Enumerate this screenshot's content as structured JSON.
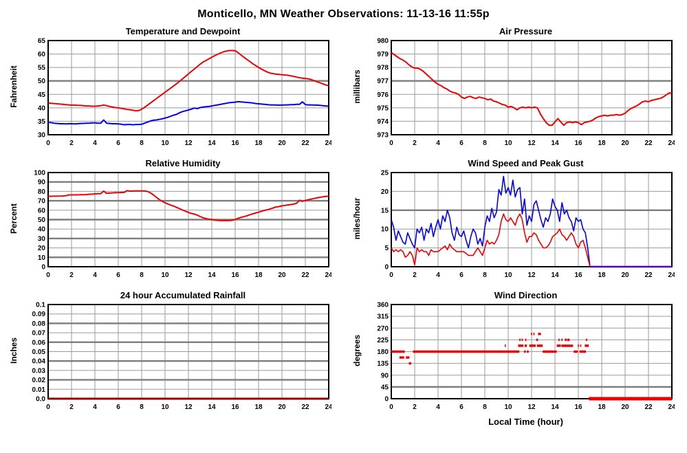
{
  "title": "Monticello, MN Weather Observations: 11-13-16 11:55p",
  "colors": {
    "red": "#ee0000",
    "blue": "#0000ee",
    "dark_red": "#990000",
    "purple": "#5000c0",
    "grid": "#9a9a9a",
    "grid_emphasis": "#7d7d7d",
    "axis": "#000000"
  },
  "chart_data": [
    {
      "id": "temperature-dewpoint",
      "type": "line",
      "title": "Temperature and Dewpoint",
      "ylabel": "Fahrenheit",
      "xlabel": "",
      "x_range": [
        0,
        24
      ],
      "x_ticks": [
        0,
        2,
        4,
        6,
        8,
        10,
        12,
        14,
        16,
        18,
        20,
        22,
        24
      ],
      "y_range": [
        30,
        65
      ],
      "y_ticks": [
        30,
        35,
        40,
        45,
        50,
        55,
        60,
        65
      ],
      "y_tick_labels": [
        "30",
        "35",
        "40",
        "45",
        "50",
        "55",
        "60",
        "65"
      ],
      "y_emphasized": [
        50
      ],
      "series": [
        {
          "name": "temperature",
          "color": "#ee0000",
          "width": 2,
          "x_start": 0,
          "x_step": 0.25,
          "y": [
            41.8,
            41.7,
            41.6,
            41.5,
            41.4,
            41.3,
            41.2,
            41.1,
            41.0,
            41.0,
            40.9,
            40.9,
            40.8,
            40.7,
            40.7,
            40.6,
            40.6,
            40.7,
            40.8,
            41.0,
            40.8,
            40.5,
            40.3,
            40.1,
            40.0,
            39.8,
            39.6,
            39.4,
            39.3,
            39.1,
            38.9,
            39.0,
            39.5,
            40.2,
            41.0,
            41.8,
            42.6,
            43.4,
            44.2,
            45.0,
            45.8,
            46.6,
            47.4,
            48.2,
            49.0,
            49.9,
            50.8,
            51.7,
            52.6,
            53.5,
            54.4,
            55.3,
            56.2,
            57.0,
            57.6,
            58.2,
            58.8,
            59.4,
            59.9,
            60.4,
            60.8,
            61.1,
            61.3,
            61.3,
            61.2,
            60.5,
            59.6,
            58.8,
            58.0,
            57.2,
            56.4,
            55.7,
            55.0,
            54.4,
            53.8,
            53.3,
            52.9,
            52.7,
            52.5,
            52.4,
            52.3,
            52.2,
            52.1,
            51.9,
            51.7,
            51.4,
            51.2,
            51.0,
            50.9,
            50.8,
            50.5,
            50.1,
            49.7,
            49.3,
            48.9,
            48.5,
            48.2
          ]
        },
        {
          "name": "dewpoint",
          "color": "#0000ee",
          "width": 2,
          "x_start": 0,
          "x_step": 0.25,
          "y": [
            34.6,
            34.5,
            34.3,
            34.2,
            34.1,
            34.1,
            34.0,
            34.1,
            34.1,
            34.0,
            34.1,
            34.2,
            34.2,
            34.3,
            34.3,
            34.4,
            34.4,
            34.3,
            34.3,
            35.5,
            34.3,
            34.2,
            34.1,
            34.1,
            34.0,
            33.9,
            33.7,
            33.8,
            33.8,
            33.7,
            33.8,
            33.8,
            33.9,
            34.3,
            34.7,
            35.1,
            35.4,
            35.5,
            35.7,
            35.9,
            36.2,
            36.5,
            36.9,
            37.3,
            37.6,
            38.2,
            38.6,
            38.9,
            39.2,
            39.5,
            39.9,
            39.7,
            40.1,
            40.3,
            40.4,
            40.5,
            40.7,
            40.9,
            41.1,
            41.3,
            41.5,
            41.7,
            41.9,
            42.0,
            42.1,
            42.3,
            42.2,
            42.1,
            42.0,
            41.9,
            41.8,
            41.6,
            41.5,
            41.4,
            41.3,
            41.2,
            41.1,
            41.1,
            41.0,
            41.0,
            41.0,
            41.1,
            41.1,
            41.2,
            41.2,
            41.3,
            41.3,
            42.2,
            41.2,
            41.1,
            41.1,
            41.0,
            41.0,
            40.9,
            40.8,
            40.7,
            40.6
          ]
        }
      ]
    },
    {
      "id": "air-pressure",
      "type": "line",
      "title": "Air Pressure",
      "ylabel": "millibars",
      "xlabel": "",
      "x_range": [
        0,
        24
      ],
      "x_ticks": [
        0,
        2,
        4,
        6,
        8,
        10,
        12,
        14,
        16,
        18,
        20,
        22,
        24
      ],
      "y_range": [
        973,
        980
      ],
      "y_ticks": [
        973,
        974,
        975,
        976,
        977,
        978,
        979,
        980
      ],
      "y_tick_labels": [
        "973",
        "974",
        "975",
        "976",
        "977",
        "978",
        "979",
        "980"
      ],
      "y_emphasized": [
        977
      ],
      "series": [
        {
          "name": "pressure",
          "color": "#ee0000",
          "width": 2,
          "x_start": 0,
          "x_step": 0.25,
          "y": [
            979.1,
            978.95,
            978.8,
            978.65,
            978.55,
            978.4,
            978.2,
            978.05,
            977.95,
            977.95,
            977.85,
            977.7,
            977.5,
            977.3,
            977.1,
            976.9,
            976.75,
            976.65,
            976.5,
            976.4,
            976.25,
            976.15,
            976.1,
            976.0,
            975.8,
            975.7,
            975.8,
            975.85,
            975.75,
            975.7,
            975.8,
            975.75,
            975.7,
            975.6,
            975.65,
            975.5,
            975.45,
            975.35,
            975.25,
            975.2,
            975.05,
            975.1,
            975.0,
            974.85,
            975.0,
            975.05,
            975.0,
            975.05,
            975.0,
            975.05,
            975.0,
            974.55,
            974.2,
            973.9,
            973.7,
            973.7,
            973.95,
            974.2,
            973.95,
            973.7,
            973.9,
            973.95,
            973.9,
            973.95,
            973.9,
            973.75,
            973.9,
            973.95,
            974.0,
            974.1,
            974.25,
            974.35,
            974.4,
            974.45,
            974.4,
            974.45,
            974.45,
            974.5,
            974.45,
            974.5,
            974.6,
            974.8,
            974.95,
            975.05,
            975.15,
            975.3,
            975.45,
            975.5,
            975.45,
            975.55,
            975.6,
            975.65,
            975.7,
            975.8,
            975.95,
            976.1,
            976.1
          ]
        }
      ]
    },
    {
      "id": "relative-humidity",
      "type": "line",
      "title": "Relative Humidity",
      "ylabel": "Percent",
      "xlabel": "",
      "x_range": [
        0,
        24
      ],
      "x_ticks": [
        0,
        2,
        4,
        6,
        8,
        10,
        12,
        14,
        16,
        18,
        20,
        22,
        24
      ],
      "y_range": [
        0,
        100
      ],
      "y_ticks": [
        0,
        10,
        20,
        30,
        40,
        50,
        60,
        70,
        80,
        90,
        100
      ],
      "y_tick_labels": [
        "0",
        "10",
        "20",
        "30",
        "40",
        "50",
        "60",
        "70",
        "80",
        "90",
        "100"
      ],
      "y_emphasized": [
        10,
        30,
        50,
        70,
        90
      ],
      "series": [
        {
          "name": "humidity",
          "color": "#ee0000",
          "width": 2,
          "x_start": 0,
          "x_step": 0.25,
          "y": [
            74.8,
            74.8,
            74.9,
            74.9,
            75.0,
            75.1,
            75.3,
            76.2,
            76.3,
            76.3,
            76.3,
            76.4,
            76.4,
            76.6,
            76.9,
            77.1,
            77.3,
            77.5,
            77.6,
            80.3,
            77.9,
            78.2,
            78.4,
            78.6,
            78.7,
            78.8,
            78.9,
            80.8,
            80.2,
            80.4,
            80.5,
            80.5,
            80.5,
            80.4,
            79.9,
            78.4,
            76.3,
            73.8,
            71.4,
            69.5,
            67.9,
            66.6,
            65.4,
            64.3,
            62.9,
            61.6,
            60.2,
            58.9,
            57.6,
            56.6,
            55.9,
            54.8,
            53.3,
            52.0,
            51.1,
            50.5,
            50.0,
            49.5,
            49.2,
            49.0,
            49.0,
            49.0,
            49.0,
            49.3,
            50.2,
            51.4,
            52.4,
            53.2,
            54.1,
            55.2,
            56.1,
            57.0,
            57.9,
            58.9,
            59.8,
            60.5,
            61.4,
            62.4,
            63.4,
            63.9,
            64.6,
            65.1,
            65.6,
            66.0,
            66.5,
            67.4,
            70.6,
            69.4,
            70.4,
            71.1,
            71.8,
            72.5,
            73.1,
            73.7,
            74.2,
            74.6,
            74.9
          ]
        }
      ]
    },
    {
      "id": "wind-speed-gust",
      "type": "line",
      "title": "Wind Speed and Peak Gust",
      "ylabel": "miles/hour",
      "xlabel": "",
      "x_range": [
        0,
        24
      ],
      "x_ticks": [
        0,
        2,
        4,
        6,
        8,
        10,
        12,
        14,
        16,
        18,
        20,
        22,
        24
      ],
      "y_range": [
        0,
        25
      ],
      "y_ticks": [
        0,
        5,
        10,
        15,
        20,
        25
      ],
      "y_tick_labels": [
        "0",
        "5",
        "10",
        "15",
        "20",
        "25"
      ],
      "y_emphasized": [
        15
      ],
      "series": [
        {
          "name": "peak-gust",
          "color": "#0000ee",
          "width": 1.6,
          "x_start": 0,
          "x_step": 0.2,
          "y": [
            12.5,
            10.5,
            7.0,
            9.5,
            8.0,
            6.5,
            6.0,
            9.0,
            7.5,
            6.0,
            5.0,
            10.0,
            9.0,
            10.5,
            7.0,
            10.0,
            9.0,
            11.5,
            8.0,
            10.5,
            12.5,
            10.0,
            13.5,
            12.0,
            15.0,
            13.0,
            9.0,
            7.0,
            10.5,
            8.5,
            8.0,
            9.5,
            7.0,
            5.0,
            8.0,
            10.0,
            9.0,
            6.0,
            7.5,
            5.5,
            10.5,
            13.5,
            12.0,
            15.5,
            13.0,
            14.5,
            20.5,
            19.0,
            24.0,
            19.5,
            21.0,
            19.0,
            23.0,
            18.5,
            20.5,
            21.0,
            14.0,
            18.0,
            11.0,
            13.5,
            12.0,
            16.5,
            17.5,
            15.0,
            12.5,
            10.5,
            13.0,
            12.0,
            14.0,
            18.0,
            16.0,
            15.0,
            12.0,
            17.0,
            14.0,
            15.0,
            13.0,
            12.0,
            9.5,
            13.0,
            12.0,
            12.5,
            10.0,
            9.0,
            5.0,
            0.0
          ]
        },
        {
          "name": "wind-speed",
          "color": "#ee0000",
          "width": 1.6,
          "x_start": 0,
          "x_step": 0.2,
          "y": [
            5.0,
            4.0,
            4.5,
            4.0,
            4.5,
            4.0,
            2.5,
            3.0,
            4.0,
            3.0,
            0.5,
            5.0,
            4.0,
            4.5,
            4.0,
            4.0,
            3.0,
            4.5,
            4.0,
            4.0,
            4.0,
            4.5,
            5.0,
            5.5,
            4.5,
            6.0,
            5.0,
            4.5,
            4.0,
            4.0,
            4.0,
            4.0,
            3.5,
            3.0,
            3.0,
            3.0,
            4.0,
            5.0,
            4.0,
            3.0,
            5.0,
            7.0,
            6.0,
            6.5,
            6.0,
            7.0,
            8.5,
            12.0,
            14.0,
            12.5,
            12.0,
            13.0,
            12.0,
            11.0,
            13.0,
            14.0,
            12.5,
            9.0,
            6.5,
            8.0,
            8.0,
            9.0,
            8.5,
            7.0,
            6.0,
            5.0,
            5.0,
            5.5,
            6.5,
            8.0,
            8.5,
            9.0,
            10.0,
            8.5,
            8.0,
            7.0,
            8.0,
            9.0,
            8.0,
            6.0,
            5.0,
            6.5,
            7.0,
            5.0,
            2.5,
            0.0
          ]
        }
      ],
      "calm_segment": {
        "x_from": 17,
        "x_to": 24,
        "value": 0,
        "color": "#5000c0"
      }
    },
    {
      "id": "accumulated-rainfall",
      "type": "line",
      "title": "24 hour Accumulated Rainfall",
      "ylabel": "Inches",
      "xlabel": "",
      "x_range": [
        0,
        24
      ],
      "x_ticks": [
        0,
        2,
        4,
        6,
        8,
        10,
        12,
        14,
        16,
        18,
        20,
        22,
        24
      ],
      "y_range": [
        0,
        0.1
      ],
      "y_ticks": [
        0,
        0.01,
        0.02,
        0.03,
        0.04,
        0.05,
        0.06,
        0.07,
        0.08,
        0.09,
        0.1
      ],
      "y_tick_labels": [
        "0.0",
        "0.01",
        "0.02",
        "0.03",
        "0.04",
        "0.05",
        "0.06",
        "0.07",
        "0.08",
        "0.09",
        "0.1"
      ],
      "y_emphasized": [
        0.02,
        0.04,
        0.06,
        0.08
      ],
      "series": [
        {
          "name": "rainfall",
          "color": "#990000",
          "width": 3,
          "x": [
            0,
            24
          ],
          "y": [
            0,
            0
          ]
        }
      ]
    },
    {
      "id": "wind-direction",
      "type": "scatter",
      "title": "Wind Direction",
      "ylabel": "degrees",
      "xlabel": "Local Time (hour)",
      "x_range": [
        0,
        24
      ],
      "x_ticks": [
        0,
        2,
        4,
        6,
        8,
        10,
        12,
        14,
        16,
        18,
        20,
        22,
        24
      ],
      "y_range": [
        0,
        360
      ],
      "y_ticks": [
        0,
        45,
        90,
        135,
        180,
        225,
        270,
        315,
        360
      ],
      "y_tick_labels": [
        "0",
        "45",
        "90",
        "135",
        "180",
        "225",
        "270",
        "315",
        "360"
      ],
      "y_emphasized": [
        45
      ],
      "marker_color": "#ee0000",
      "segments": [
        [
          180,
          0.0,
          1.15
        ],
        [
          157.5,
          0.7,
          1.1
        ],
        [
          157.5,
          1.25,
          1.55
        ],
        [
          135,
          1.5,
          1.7
        ],
        [
          180,
          1.85,
          10.95
        ],
        [
          202.5,
          9.7,
          9.75
        ],
        [
          202.5,
          10.85,
          11.3
        ],
        [
          225,
          10.95,
          11.05
        ],
        [
          225,
          11.15,
          11.25
        ],
        [
          225,
          11.45,
          11.55
        ],
        [
          202.5,
          11.4,
          11.6
        ],
        [
          180,
          11.35,
          11.5
        ],
        [
          180,
          11.6,
          11.75
        ],
        [
          202.5,
          11.8,
          12.35
        ],
        [
          247.5,
          11.95,
          12.05
        ],
        [
          247.5,
          12.15,
          12.25
        ],
        [
          247.5,
          12.55,
          12.8
        ],
        [
          225,
          12.4,
          12.55
        ],
        [
          202.5,
          12.45,
          12.95
        ],
        [
          180,
          12.95,
          14.15
        ],
        [
          202.5,
          14.15,
          14.5
        ],
        [
          225,
          14.3,
          14.4
        ],
        [
          225,
          14.55,
          14.65
        ],
        [
          202.5,
          14.55,
          15.55
        ],
        [
          225,
          14.85,
          15.0
        ],
        [
          225,
          15.05,
          15.25
        ],
        [
          180,
          15.6,
          15.95
        ],
        [
          202.5,
          15.95,
          16.05
        ],
        [
          202.5,
          16.15,
          16.25
        ],
        [
          180,
          16.1,
          16.65
        ],
        [
          202.5,
          16.55,
          16.9
        ],
        [
          225,
          16.65,
          16.75
        ],
        [
          0,
          16.9,
          24.0
        ]
      ]
    }
  ]
}
